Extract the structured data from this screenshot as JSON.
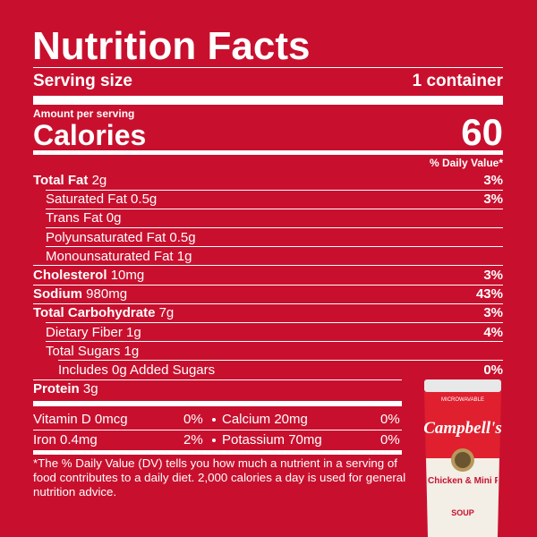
{
  "title": "Nutrition Facts",
  "serving": {
    "label": "Serving size",
    "value": "1 container"
  },
  "amount_per_serving": "Amount per serving",
  "calories": {
    "label": "Calories",
    "value": "60"
  },
  "daily_value_header": "% Daily Value*",
  "rows": [
    {
      "name": "Total Fat",
      "amount": "2g",
      "dv": "3%"
    },
    {
      "name": "Saturated Fat 0.5g",
      "dv": "3%"
    },
    {
      "name": "Trans Fat 0g"
    },
    {
      "name": "Polyunsaturated Fat 0.5g"
    },
    {
      "name": "Monounsaturated Fat 1g"
    },
    {
      "name": "Cholesterol",
      "amount": "10mg",
      "dv": "3%"
    },
    {
      "name": "Sodium",
      "amount": "980mg",
      "dv": "43%"
    },
    {
      "name": "Total Carbohydrate",
      "amount": "7g",
      "dv": "3%"
    },
    {
      "name": "Dietary Fiber 1g",
      "dv": "4%"
    },
    {
      "name": "Total Sugars 1g"
    },
    {
      "name": "Includes 0g Added Sugars",
      "dv": "0%"
    },
    {
      "name": "Protein",
      "amount": "3g"
    }
  ],
  "vitamins": [
    [
      {
        "name": "Vitamin D 0mcg",
        "dv": "0%"
      },
      {
        "name": "Calcium 20mg",
        "dv": "0%"
      }
    ],
    [
      {
        "name": "Iron 0.4mg",
        "dv": "2%"
      },
      {
        "name": "Potassium 70mg",
        "dv": "0%"
      }
    ]
  ],
  "footnote": "*The % Daily Value (DV) tells you how much a nutrient in a serving of food contributes to a daily diet. 2,000 calories a day is used for general nutrition advice.",
  "product": {
    "badge": "MICROWAVABLE",
    "brand": "Campbell's",
    "name": "Chicken & Mini Round Noodles",
    "kind": "SOUP"
  }
}
